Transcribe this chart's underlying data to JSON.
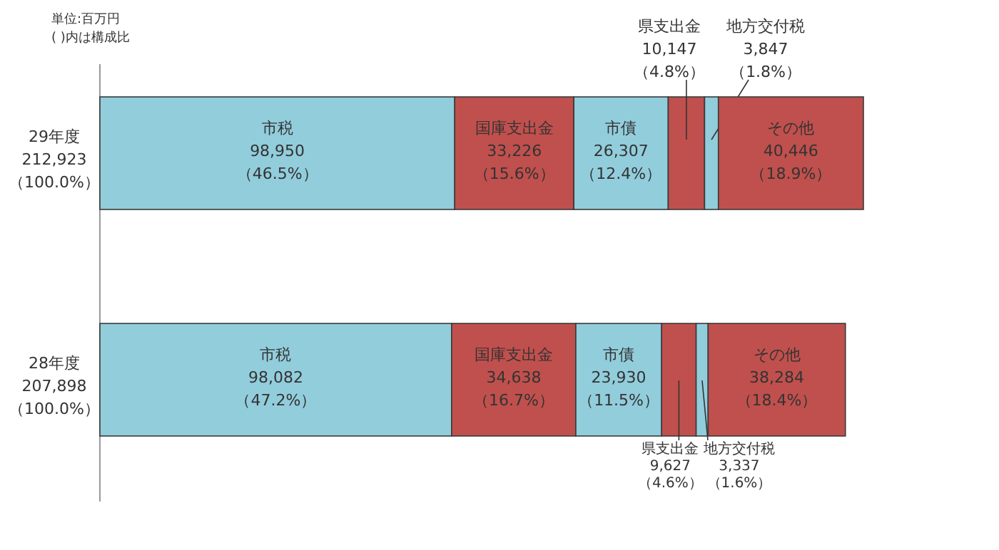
{
  "chart_data": {
    "type": "bar",
    "orientation": "horizontal",
    "stacked": true,
    "categories": [
      "29年度",
      "28年度"
    ],
    "totals": [
      "212,923\n（100.0%）",
      "207,898\n（100.0%）"
    ],
    "series": [
      {
        "name": "市税",
        "color": "#92cddc",
        "values": [
          98950,
          98082
        ],
        "value_labels": [
          "98,950\n（46.5%）",
          "98,082\n（47.2%）"
        ]
      },
      {
        "name": "国庫支出金",
        "color": "#c0504d",
        "values": [
          33226,
          34638
        ],
        "value_labels": [
          "33,226\n（15.6%）",
          "34,638\n（16.7%）"
        ]
      },
      {
        "name": "市債",
        "color": "#92cddc",
        "values": [
          26307,
          23930
        ],
        "value_labels": [
          "26,307\n（12.4%）",
          "23,930\n（11.5%）"
        ]
      },
      {
        "name": "県支出金",
        "color": "#c0504d",
        "values": [
          10147,
          9627
        ],
        "value_labels": [
          "10,147\n（4.8%）",
          "9,627\n（4.6%）"
        ]
      },
      {
        "name": "地方交付税",
        "color": "#92cddc",
        "values": [
          3847,
          3337
        ],
        "value_labels": [
          "3,847\n（1.8%）",
          "3,337\n（1.6%）"
        ]
      },
      {
        "name": "その他",
        "color": "#c0504d",
        "values": [
          40446,
          38284
        ],
        "value_labels": [
          "40,446\n（18.9%）",
          "38,284\n（18.4%）"
        ]
      }
    ],
    "annotations": [
      "単位:百万円\n( )内は構成比"
    ]
  }
}
